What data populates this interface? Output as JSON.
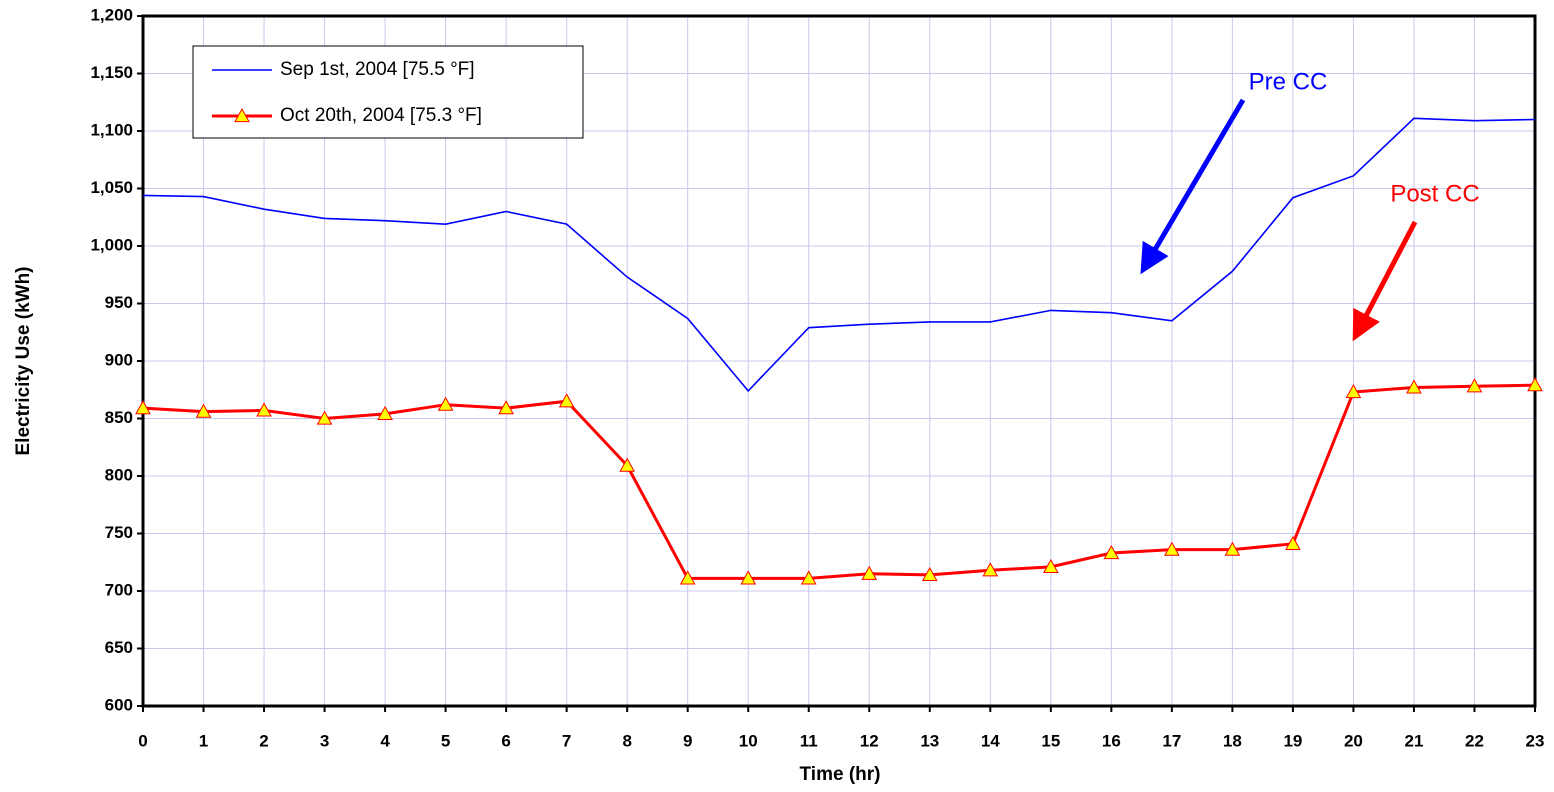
{
  "chart_data": {
    "type": "line",
    "x_label": "Time (hr)",
    "y_label": "Electricity Use (kWh)",
    "x": [
      0,
      1,
      2,
      3,
      4,
      5,
      6,
      7,
      8,
      9,
      10,
      11,
      12,
      13,
      14,
      15,
      16,
      17,
      18,
      19,
      20,
      21,
      22,
      23
    ],
    "xlim": [
      0,
      23
    ],
    "xticks": [
      0,
      1,
      2,
      3,
      4,
      5,
      6,
      7,
      8,
      9,
      10,
      11,
      12,
      13,
      14,
      15,
      16,
      17,
      18,
      19,
      20,
      21,
      22,
      23
    ],
    "ylim": [
      600,
      1200
    ],
    "yticks": [
      600,
      650,
      700,
      750,
      800,
      850,
      900,
      950,
      {
        "value": 1000,
        "label": "1,000"
      },
      {
        "value": 1050,
        "label": "1,050"
      },
      {
        "value": 1100,
        "label": "1,100"
      },
      {
        "value": 1150,
        "label": "1,150"
      },
      {
        "value": 1200,
        "label": "1,200"
      }
    ],
    "grid": true,
    "legend": "upper left",
    "series": [
      {
        "name": "Sep 1st, 2004 [75.5 °F]",
        "color": "#0000ff",
        "marker": "none",
        "values": [
          1044,
          1043,
          1032,
          1024,
          1022,
          1019,
          1030,
          1019,
          973,
          937,
          874,
          929,
          932,
          934,
          934,
          944,
          942,
          935,
          978,
          1042,
          1061,
          1111,
          1109,
          1110
        ]
      },
      {
        "name": "Oct 20th, 2004 [75.3 °F]",
        "color": "#ff0000",
        "marker": "triangle",
        "marker_fill": "#ffff00",
        "values": [
          859,
          856,
          857,
          850,
          854,
          862,
          859,
          865,
          809,
          711,
          711,
          711,
          715,
          714,
          718,
          721,
          733,
          736,
          736,
          741,
          873,
          877,
          878,
          879
        ]
      }
    ],
    "annotations": [
      {
        "text": "Pre CC",
        "color": "#0000ff"
      },
      {
        "text": "Post CC",
        "color": "#ff0000"
      }
    ]
  }
}
